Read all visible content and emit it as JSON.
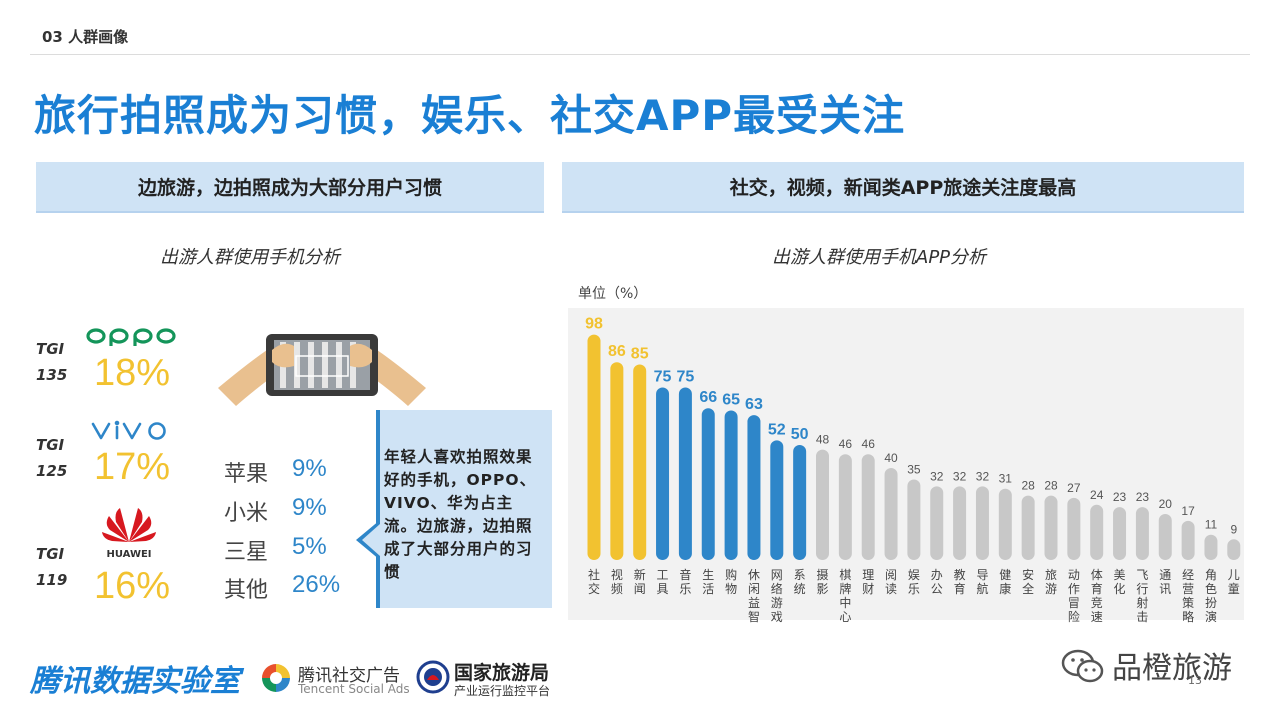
{
  "section_label": "03 人群画像",
  "title": "旅行拍照成为习惯，娱乐、社交APP最受关注",
  "left_banner": "边旅游，边拍照成为大部分用户习惯",
  "right_banner": "社交，视频，新闻类APP旅途关注度最高",
  "phone_chart": {
    "subtitle": "出游人群使用手机分析",
    "brands": [
      {
        "name": "OPPO",
        "logo": "oppo-logo",
        "tgi_label": "TGI",
        "tgi": "135",
        "share": "18%"
      },
      {
        "name": "VIVO",
        "logo": "vivo-logo",
        "tgi_label": "TGI",
        "tgi": "125",
        "share": "17%"
      },
      {
        "name": "HUAWEI",
        "logo": "huawei-logo",
        "tgi_label": "TGI",
        "tgi": "119",
        "share": "16%"
      }
    ],
    "others": [
      {
        "name": "苹果",
        "share": "9%"
      },
      {
        "name": "小米",
        "share": "9%"
      },
      {
        "name": "三星",
        "share": "5%"
      },
      {
        "name": "其他",
        "share": "26%"
      }
    ],
    "callout": "年轻人喜欢拍照效果好的手机，OPPO、VIVO、华为占主流。边旅游，边拍照成了大部分用户的习惯"
  },
  "chart_data": {
    "type": "bar",
    "title": "出游人群使用手机APP分析",
    "unit_label": "单位（%）",
    "categories": [
      "社交",
      "视频",
      "新闻",
      "工具",
      "音乐",
      "生活",
      "购物",
      "休闲益智",
      "网络游戏",
      "系统",
      "摄影",
      "棋牌中心",
      "理财",
      "阅读",
      "娱乐",
      "办公",
      "教育",
      "导航",
      "健康",
      "安全",
      "旅游",
      "动作冒险",
      "体育竞速",
      "美化",
      "飞行射击",
      "通讯",
      "经营策略",
      "角色扮演",
      "儿童"
    ],
    "values": [
      98,
      86,
      85,
      75,
      75,
      66,
      65,
      63,
      52,
      50,
      48,
      46,
      46,
      40,
      35,
      32,
      32,
      32,
      31,
      28,
      28,
      27,
      24,
      23,
      23,
      20,
      17,
      11,
      9
    ],
    "ylim": [
      0,
      100
    ],
    "colors": {
      "top": "#f2c230",
      "middle": "#2e86c9",
      "rest": "#c8c8c8"
    },
    "label_colors": {
      "top": "#f2c230",
      "middle": "#2e86c9",
      "rest": "#555555"
    },
    "group_sizes": {
      "top": 3,
      "middle": 7
    }
  },
  "footer": {
    "brand": "腾讯数据实验室",
    "tencent_cn": "腾讯社交广告",
    "tencent_en": "Tencent Social Ads",
    "cnta_cn": "国家旅游局",
    "cnta_sub": "产业运行监控平台",
    "wechat_name": "品橙旅游",
    "page": "13"
  }
}
